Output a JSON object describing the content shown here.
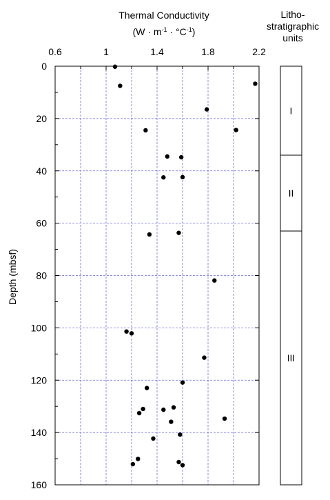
{
  "chart_data": {
    "type": "scatter",
    "title_line1": "Thermal Conductivity",
    "title_line2_parts": [
      "(W · m",
      "-1",
      " · °C",
      "-1",
      ")"
    ],
    "ylabel": "Depth (mbsf)",
    "xlim": [
      0.6,
      2.2
    ],
    "ylim": [
      0,
      160
    ],
    "y_inverted": true,
    "x_axis_position": "top",
    "grid": true,
    "x_ticks": [
      {
        "value": 0.6,
        "label": "0.6"
      },
      {
        "value": 1.0,
        "label": "1"
      },
      {
        "value": 1.4,
        "label": "1.4"
      },
      {
        "value": 1.8,
        "label": "1.8"
      },
      {
        "value": 2.2,
        "label": "2.2"
      }
    ],
    "y_ticks": [
      {
        "value": 0,
        "label": "0"
      },
      {
        "value": 20,
        "label": "20"
      },
      {
        "value": 40,
        "label": "40"
      },
      {
        "value": 60,
        "label": "60"
      },
      {
        "value": 80,
        "label": "80"
      },
      {
        "value": 100,
        "label": "100"
      },
      {
        "value": 120,
        "label": "120"
      },
      {
        "value": 140,
        "label": "140"
      },
      {
        "value": 160,
        "label": "160"
      }
    ],
    "points": [
      {
        "x": 1.07,
        "y": 0.2
      },
      {
        "x": 2.17,
        "y": 6.7
      },
      {
        "x": 1.11,
        "y": 7.5
      },
      {
        "x": 1.79,
        "y": 16.5
      },
      {
        "x": 1.31,
        "y": 24.5
      },
      {
        "x": 2.02,
        "y": 24.4
      },
      {
        "x": 1.48,
        "y": 34.5
      },
      {
        "x": 1.59,
        "y": 34.8
      },
      {
        "x": 1.45,
        "y": 42.5
      },
      {
        "x": 1.6,
        "y": 42.4
      },
      {
        "x": 1.34,
        "y": 64.3
      },
      {
        "x": 1.57,
        "y": 63.7
      },
      {
        "x": 1.85,
        "y": 81.9
      },
      {
        "x": 1.16,
        "y": 101.4
      },
      {
        "x": 1.2,
        "y": 102.1
      },
      {
        "x": 1.77,
        "y": 111.4
      },
      {
        "x": 1.6,
        "y": 120.9
      },
      {
        "x": 1.32,
        "y": 123.0
      },
      {
        "x": 1.53,
        "y": 130.4
      },
      {
        "x": 1.29,
        "y": 131.0
      },
      {
        "x": 1.45,
        "y": 131.3
      },
      {
        "x": 1.26,
        "y": 132.6
      },
      {
        "x": 1.93,
        "y": 134.7
      },
      {
        "x": 1.51,
        "y": 135.9
      },
      {
        "x": 1.58,
        "y": 140.8
      },
      {
        "x": 1.37,
        "y": 142.3
      },
      {
        "x": 1.25,
        "y": 150.1
      },
      {
        "x": 1.57,
        "y": 151.3
      },
      {
        "x": 1.21,
        "y": 152.1
      },
      {
        "x": 1.6,
        "y": 152.5
      }
    ],
    "units_column": {
      "title_lines": [
        "Litho-",
        "stratigraphic",
        "units"
      ],
      "units": [
        {
          "label": "I",
          "top": 0,
          "bottom": 34
        },
        {
          "label": "II",
          "top": 34,
          "bottom": 63
        },
        {
          "label": "III",
          "top": 63,
          "bottom": 160
        }
      ]
    }
  }
}
